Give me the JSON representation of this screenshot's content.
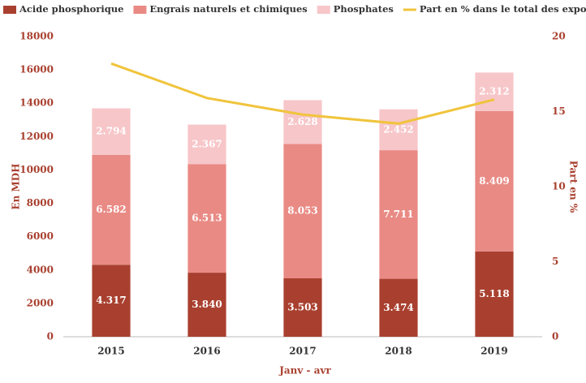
{
  "chart_data": {
    "type": "bar",
    "stacked": true,
    "categories": [
      "2015",
      "2016",
      "2017",
      "2018",
      "2019"
    ],
    "xlabel": "Janv - avr",
    "ylabel": "En MDH",
    "y2label": "Part en %",
    "ylim": [
      0,
      18000
    ],
    "yticks": [
      0,
      2000,
      4000,
      6000,
      8000,
      10000,
      12000,
      14000,
      16000,
      18000
    ],
    "y2lim": [
      0,
      20
    ],
    "y2ticks": [
      0,
      5,
      10,
      15,
      20
    ],
    "series": [
      {
        "name": "Acide phosphorique",
        "color": "#a9402f",
        "values": [
          4317,
          3840,
          3503,
          3474,
          5118
        ],
        "value_labels": [
          "4.317",
          "3.840",
          "3.503",
          "3.474",
          "5.118"
        ]
      },
      {
        "name": "Engrais naturels et chimiques",
        "color": "#e98a84",
        "values": [
          6582,
          6513,
          8053,
          7711,
          8409
        ],
        "value_labels": [
          "6.582",
          "6.513",
          "8.053",
          "7.711",
          "8.409"
        ]
      },
      {
        "name": "Phosphates",
        "color": "#f7c6c9",
        "values": [
          2794,
          2367,
          2628,
          2452,
          2312
        ],
        "value_labels": [
          "2.794",
          "2.367",
          "2.628",
          "2.452",
          "2.312"
        ]
      },
      {
        "name": "Part en % dans le total des exportations",
        "color": "#f0c43c",
        "type": "line",
        "axis": "y2",
        "values": [
          18.2,
          15.9,
          14.8,
          14.2,
          15.8
        ]
      }
    ]
  }
}
